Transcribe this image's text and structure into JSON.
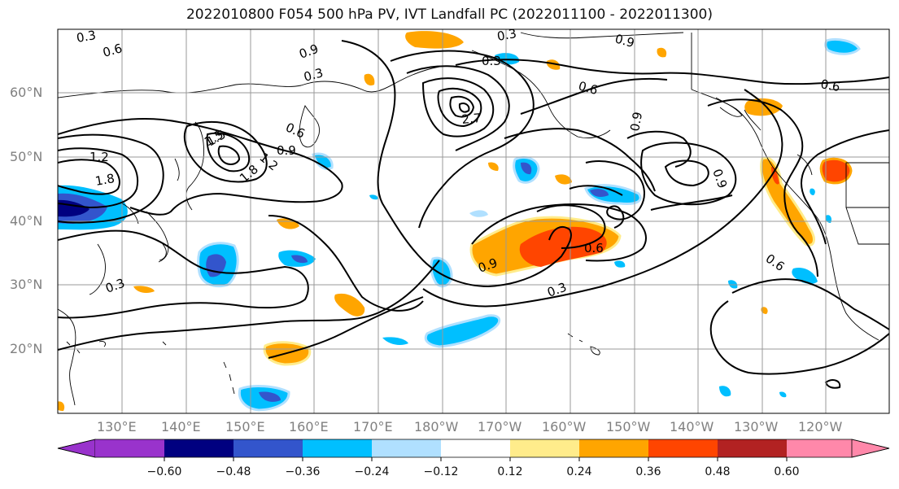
{
  "title": "2022010800 F054 500 hPa PV, IVT Landfall PC (2022011100 - 2022011300)",
  "lat_labels": [
    "60°N",
    "50°N",
    "40°N",
    "30°N",
    "20°N"
  ],
  "lon_labels": [
    "130°E",
    "140°E",
    "150°E",
    "160°E",
    "170°E",
    "180°W",
    "170°W",
    "160°W",
    "150°W",
    "140°W",
    "130°W",
    "120°W"
  ],
  "contour_labels": [
    "0.3",
    "0.6",
    "0.9",
    "0.3",
    "0.6",
    "0.9",
    "1.2",
    "1.5",
    "1.8",
    "2.7",
    "0.3",
    "0.6",
    "0.9",
    "0.9",
    "0.9",
    "0.6",
    "0.3",
    "0.6",
    "0.9",
    "1.2",
    "1.5",
    "1.8",
    "0.3",
    "0.6",
    "0.3"
  ],
  "colorbar": {
    "colors": [
      "#9933cc",
      "#000080",
      "#3355cc",
      "#00bfff",
      "#b0e0ff",
      "#ffffff",
      "#ffec8b",
      "#ffa500",
      "#ff4500",
      "#b22222",
      "#ff88aa"
    ],
    "tick_labels": [
      "−0.60",
      "−0.48",
      "−0.36",
      "−0.24",
      "−0.12",
      "0.12",
      "0.24",
      "0.36",
      "0.48",
      "0.60"
    ]
  },
  "colors": {
    "orange": "#ffa500",
    "red_orange": "#ff4500",
    "dark_red": "#b22222",
    "light_yellow": "#ffec8b",
    "blue": "#00bfff",
    "royal": "#3355cc",
    "light_blue": "#b0e0ff",
    "grid": "#999999",
    "contour": "#000000"
  }
}
